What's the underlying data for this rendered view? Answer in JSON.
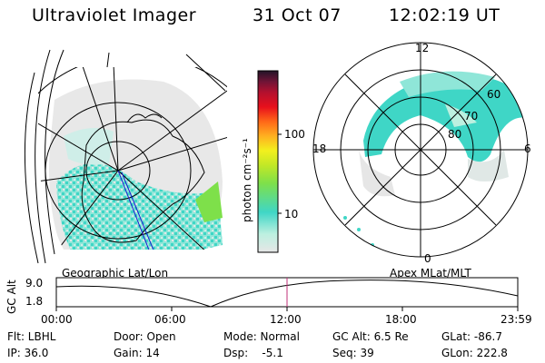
{
  "header": {
    "instrument": "Ultraviolet Imager",
    "date": "31 Oct 07",
    "time": "12:02:19 UT"
  },
  "colorbar": {
    "unit_label": "photon cm⁻²s⁻¹",
    "ticks": [
      "100",
      "10"
    ],
    "colors": [
      "#e6e6e6",
      "#bdf0e0",
      "#3fd6c6",
      "#7ee04a",
      "#c2e826",
      "#f2f01e",
      "#ffb020",
      "#ff6818",
      "#e8101c",
      "#b4102e",
      "#701436",
      "#221428"
    ]
  },
  "polar_plot": {
    "mlt_labels": {
      "top": "12",
      "left": "18",
      "right": "6",
      "bottom": "0"
    },
    "lat_labels": [
      "60",
      "70",
      "80"
    ]
  },
  "geo_plot": {
    "caption": "Geographic Lat/Lon"
  },
  "apex_caption": "Apex MLat/MLT",
  "altitude_plot": {
    "ylabel": "GC Alt",
    "yticks": [
      "9.0",
      "1.8"
    ],
    "xticks": [
      "00:00",
      "06:00",
      "12:00",
      "18:00",
      "23:59"
    ],
    "marker_color": "#c0307a"
  },
  "status": {
    "flt": "Flt: LBHL",
    "ip": "IP: 36.0",
    "door": "Door: Open",
    "gain": "Gain: 14",
    "mode": "Mode: Normal",
    "dsp": "Dsp:    -5.1",
    "gcalt": "GC Alt: 6.5 Re",
    "seq": "Seq: 39",
    "glat": "GLat: -86.7",
    "glon": "GLon: 222.8"
  }
}
